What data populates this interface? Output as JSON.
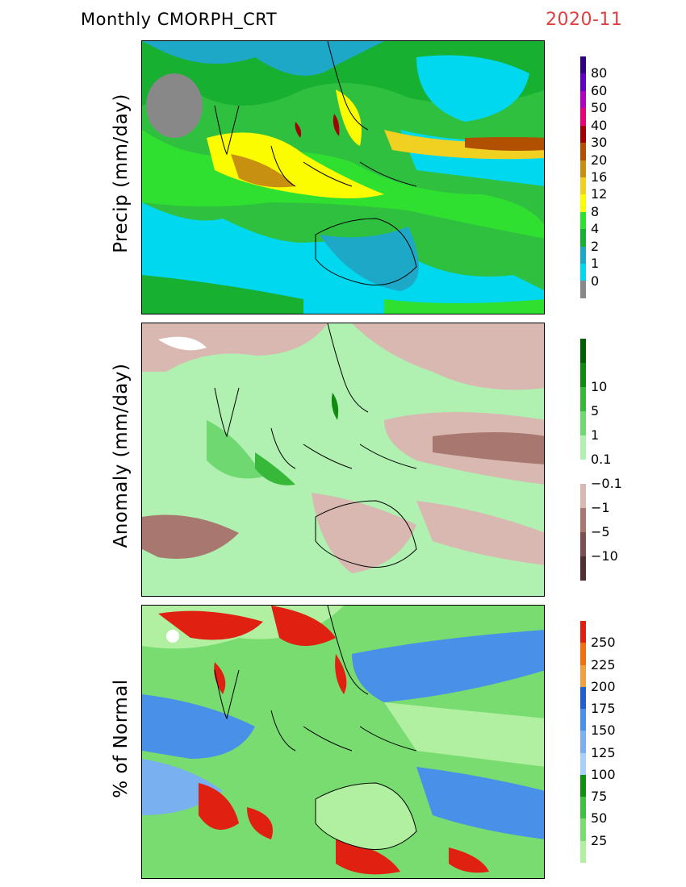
{
  "header": {
    "title": "Monthly  CMORPH_CRT",
    "date": "2020-11"
  },
  "panels": [
    {
      "label": "Precip (mm/day)",
      "colors": [
        "#888888",
        "#00d8f0",
        "#1ea8c8",
        "#18b030",
        "#30e030",
        "#fcfc00",
        "#f0d020",
        "#c89010",
        "#b05000",
        "#a00000",
        "#e8007a",
        "#b000c0",
        "#6000c0",
        "#300080"
      ],
      "ticks": [
        "0",
        "1",
        "2",
        "4",
        "8",
        "12",
        "16",
        "20",
        "30",
        "40",
        "50",
        "60",
        "80"
      ]
    },
    {
      "label": "Anomaly (mm/day)",
      "colors": [
        "#503030",
        "#7a5050",
        "#a87870",
        "#d8b8b0",
        "#ffffff",
        "#b0f0b0",
        "#70d870",
        "#38b838",
        "#108a10",
        "#006000"
      ],
      "ticks": [
        "−10",
        "−5",
        "−1",
        "−0.1",
        "0.1",
        "1",
        "5",
        "10"
      ]
    },
    {
      "label": "% of Normal",
      "colors": [
        "#b0f0a0",
        "#78dc70",
        "#40c040",
        "#109010",
        "#a8d0f8",
        "#78b0f0",
        "#4890e8",
        "#2060d0",
        "#f0a040",
        "#f07010",
        "#e02010"
      ],
      "ticks": [
        "25",
        "50",
        "75",
        "100",
        "125",
        "150",
        "175",
        "200",
        "225",
        "250"
      ]
    }
  ]
}
